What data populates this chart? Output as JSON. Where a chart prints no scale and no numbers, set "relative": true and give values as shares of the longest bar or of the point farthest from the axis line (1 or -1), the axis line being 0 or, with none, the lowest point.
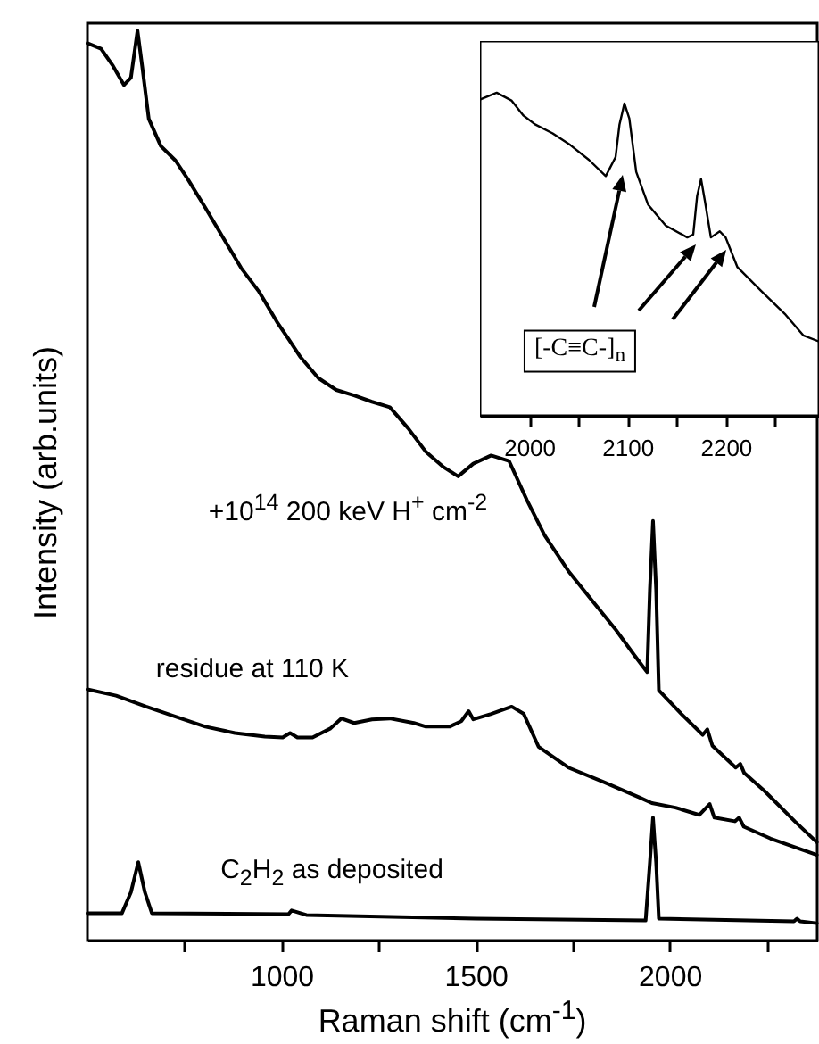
{
  "chart_data": [
    {
      "type": "line",
      "xlabel": "Raman shift (cm$^{-1}$)",
      "ylabel": "Intensity (arb.units)",
      "relative": true,
      "xlim": [
        500,
        2380
      ],
      "xticks": [
        {
          "value": 750,
          "label": null
        },
        1000,
        {
          "value": 1250,
          "label": null
        },
        1500,
        {
          "value": 1750,
          "label": null
        },
        2000,
        {
          "value": 2250,
          "label": null
        }
      ],
      "series": [
        {
          "color": "#000000",
          "x": [
            500,
            535,
            566,
            594,
            612,
            629,
            641,
            658,
            689,
            727,
            758,
            804,
            850,
            896,
            942,
            988,
            1018,
            1049,
            1095,
            1141,
            1187,
            1233,
            1279,
            1326,
            1372,
            1418,
            1455,
            1494,
            1540,
            1586,
            1632,
            1678,
            1739,
            1801,
            1862,
            1908,
            1931,
            1942,
            1949,
            1957,
            1965,
            1972,
            2030,
            2085,
            2097,
            2110,
            2170,
            2182,
            2192,
            2245,
            2322,
            2379
          ],
          "values": [
            0.986,
            0.98,
            0.961,
            0.94,
            0.948,
            1.0,
            0.961,
            0.903,
            0.873,
            0.857,
            0.837,
            0.805,
            0.772,
            0.739,
            0.713,
            0.68,
            0.661,
            0.641,
            0.618,
            0.605,
            0.599,
            0.592,
            0.586,
            0.563,
            0.537,
            0.52,
            0.51,
            0.524,
            0.533,
            0.527,
            0.484,
            0.445,
            0.406,
            0.373,
            0.341,
            0.314,
            0.301,
            0.295,
            0.386,
            0.461,
            0.386,
            0.275,
            0.249,
            0.226,
            0.232,
            0.214,
            0.19,
            0.194,
            0.184,
            0.164,
            0.131,
            0.108
          ]
        },
        {
          "color": "#000000",
          "x": [
            500,
            574,
            651,
            727,
            804,
            880,
            957,
            1003,
            1022,
            1041,
            1080,
            1126,
            1154,
            1187,
            1233,
            1279,
            1341,
            1372,
            1433,
            1463,
            1482,
            1494,
            1540,
            1593,
            1624,
            1662,
            1739,
            1831,
            1923,
            1954,
            2015,
            2076,
            2103,
            2115,
            2168,
            2179,
            2191,
            2260,
            2379
          ],
          "values": [
            0.276,
            0.269,
            0.257,
            0.246,
            0.235,
            0.228,
            0.224,
            0.223,
            0.228,
            0.223,
            0.223,
            0.233,
            0.244,
            0.239,
            0.243,
            0.244,
            0.239,
            0.235,
            0.235,
            0.241,
            0.252,
            0.243,
            0.249,
            0.257,
            0.249,
            0.213,
            0.19,
            0.174,
            0.157,
            0.151,
            0.146,
            0.138,
            0.15,
            0.135,
            0.131,
            0.135,
            0.125,
            0.112,
            0.094
          ]
        },
        {
          "color": "#000000",
          "x": [
            500,
            589,
            612,
            631,
            648,
            666,
            1018,
            1026,
            1064,
            1500,
            1938,
            1949,
            1957,
            1965,
            1972,
            2320,
            2328,
            2336,
            2379
          ],
          "values": [
            0.03,
            0.03,
            0.053,
            0.086,
            0.053,
            0.03,
            0.029,
            0.033,
            0.028,
            0.024,
            0.022,
            0.086,
            0.135,
            0.086,
            0.024,
            0.021,
            0.024,
            0.021,
            0.019
          ]
        }
      ],
      "annotations": [
        "+10$^{14}$ 200 keV H$^{+}$ cm$^{-2}$",
        "residue at 110 K",
        "C$_{2}$H$_{2}$ as deposited"
      ]
    },
    {
      "type": "line",
      "relative": true,
      "xlim": [
        1950,
        2295
      ],
      "xticks": [
        2000,
        {
          "value": 2050,
          "label": null
        },
        2100,
        {
          "value": 2150,
          "label": null
        },
        2200,
        {
          "value": 2250,
          "label": null
        }
      ],
      "series": [
        {
          "color": "#000000",
          "x": [
            1951,
            1967,
            1982,
            1994,
            2006,
            2024,
            2042,
            2061,
            2078,
            2088,
            2092,
            2097,
            2102,
            2109,
            2121,
            2139,
            2161,
            2167,
            2171,
            2175,
            2179,
            2185,
            2194,
            2200,
            2212,
            2236,
            2261,
            2279,
            2295
          ],
          "values": [
            0.98,
            1.0,
            0.976,
            0.93,
            0.902,
            0.874,
            0.838,
            0.792,
            0.742,
            0.801,
            0.902,
            0.967,
            0.92,
            0.755,
            0.654,
            0.589,
            0.552,
            0.561,
            0.681,
            0.733,
            0.663,
            0.552,
            0.571,
            0.552,
            0.46,
            0.387,
            0.313,
            0.249,
            0.23
          ]
        }
      ],
      "annotations": [
        "[-C≡C-]$_{n}$"
      ]
    }
  ]
}
